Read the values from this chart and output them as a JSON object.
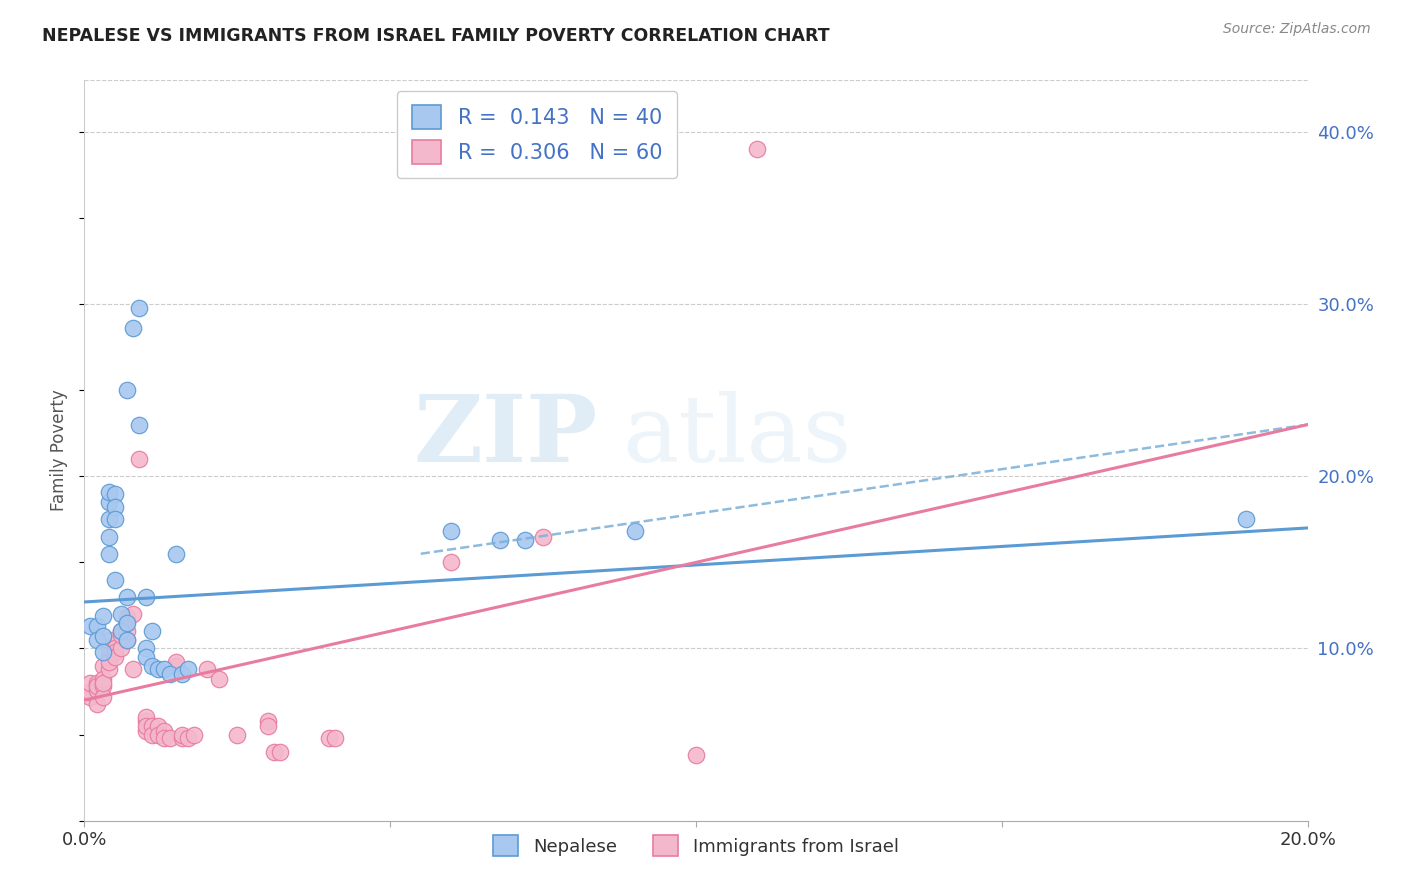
{
  "title": "NEPALESE VS IMMIGRANTS FROM ISRAEL FAMILY POVERTY CORRELATION CHART",
  "source": "Source: ZipAtlas.com",
  "ylabel": "Family Poverty",
  "xlim": [
    0.0,
    0.2
  ],
  "ylim": [
    0.0,
    0.43
  ],
  "yticks": [
    0.1,
    0.2,
    0.3,
    0.4
  ],
  "ytick_labels": [
    "10.0%",
    "20.0%",
    "30.0%",
    "40.0%"
  ],
  "xticks": [
    0.0,
    0.05,
    0.1,
    0.15,
    0.2
  ],
  "xtick_labels": [
    "0.0%",
    "",
    "",
    "",
    "20.0%"
  ],
  "nepalese_color": "#a8c8f0",
  "israel_color": "#f4b8cc",
  "nepalese_edge_color": "#5b9bd5",
  "israel_edge_color": "#e87ca0",
  "trendline_nepalese_color": "#5b9bd5",
  "trendline_israel_color": "#e87ca0",
  "dashed_line_color": "#7ab0d8",
  "background_color": "#ffffff",
  "watermark_zip": "ZIP",
  "watermark_atlas": "atlas",
  "nepalese_points": [
    [
      0.001,
      0.113
    ],
    [
      0.002,
      0.113
    ],
    [
      0.002,
      0.105
    ],
    [
      0.003,
      0.107
    ],
    [
      0.003,
      0.098
    ],
    [
      0.003,
      0.119
    ],
    [
      0.004,
      0.185
    ],
    [
      0.004,
      0.191
    ],
    [
      0.004,
      0.175
    ],
    [
      0.004,
      0.165
    ],
    [
      0.004,
      0.155
    ],
    [
      0.005,
      0.19
    ],
    [
      0.005,
      0.182
    ],
    [
      0.005,
      0.14
    ],
    [
      0.005,
      0.175
    ],
    [
      0.006,
      0.12
    ],
    [
      0.006,
      0.11
    ],
    [
      0.007,
      0.105
    ],
    [
      0.007,
      0.115
    ],
    [
      0.007,
      0.13
    ],
    [
      0.007,
      0.25
    ],
    [
      0.008,
      0.286
    ],
    [
      0.009,
      0.23
    ],
    [
      0.009,
      0.298
    ],
    [
      0.01,
      0.13
    ],
    [
      0.01,
      0.1
    ],
    [
      0.01,
      0.095
    ],
    [
      0.011,
      0.11
    ],
    [
      0.011,
      0.09
    ],
    [
      0.012,
      0.088
    ],
    [
      0.013,
      0.088
    ],
    [
      0.014,
      0.085
    ],
    [
      0.015,
      0.155
    ],
    [
      0.016,
      0.085
    ],
    [
      0.017,
      0.088
    ],
    [
      0.06,
      0.168
    ],
    [
      0.068,
      0.163
    ],
    [
      0.072,
      0.163
    ],
    [
      0.09,
      0.168
    ],
    [
      0.19,
      0.175
    ]
  ],
  "israel_points": [
    [
      0.001,
      0.072
    ],
    [
      0.001,
      0.075
    ],
    [
      0.001,
      0.08
    ],
    [
      0.002,
      0.08
    ],
    [
      0.002,
      0.068
    ],
    [
      0.002,
      0.076
    ],
    [
      0.002,
      0.078
    ],
    [
      0.003,
      0.078
    ],
    [
      0.003,
      0.072
    ],
    [
      0.003,
      0.09
    ],
    [
      0.003,
      0.082
    ],
    [
      0.003,
      0.08
    ],
    [
      0.004,
      0.088
    ],
    [
      0.004,
      0.095
    ],
    [
      0.004,
      0.092
    ],
    [
      0.004,
      0.1
    ],
    [
      0.004,
      0.105
    ],
    [
      0.005,
      0.1
    ],
    [
      0.005,
      0.098
    ],
    [
      0.005,
      0.095
    ],
    [
      0.006,
      0.1
    ],
    [
      0.006,
      0.11
    ],
    [
      0.006,
      0.108
    ],
    [
      0.007,
      0.105
    ],
    [
      0.007,
      0.11
    ],
    [
      0.007,
      0.116
    ],
    [
      0.007,
      0.118
    ],
    [
      0.008,
      0.12
    ],
    [
      0.008,
      0.088
    ],
    [
      0.009,
      0.21
    ],
    [
      0.01,
      0.058
    ],
    [
      0.01,
      0.06
    ],
    [
      0.01,
      0.052
    ],
    [
      0.01,
      0.055
    ],
    [
      0.011,
      0.055
    ],
    [
      0.011,
      0.05
    ],
    [
      0.012,
      0.055
    ],
    [
      0.012,
      0.05
    ],
    [
      0.013,
      0.052
    ],
    [
      0.013,
      0.048
    ],
    [
      0.014,
      0.048
    ],
    [
      0.015,
      0.09
    ],
    [
      0.015,
      0.092
    ],
    [
      0.016,
      0.048
    ],
    [
      0.016,
      0.05
    ],
    [
      0.017,
      0.048
    ],
    [
      0.018,
      0.05
    ],
    [
      0.02,
      0.088
    ],
    [
      0.022,
      0.082
    ],
    [
      0.025,
      0.05
    ],
    [
      0.03,
      0.058
    ],
    [
      0.03,
      0.055
    ],
    [
      0.031,
      0.04
    ],
    [
      0.032,
      0.04
    ],
    [
      0.04,
      0.048
    ],
    [
      0.041,
      0.048
    ],
    [
      0.06,
      0.15
    ],
    [
      0.075,
      0.165
    ],
    [
      0.1,
      0.038
    ],
    [
      0.11,
      0.39
    ]
  ],
  "nep_trend_x0": 0.0,
  "nep_trend_y0": 0.127,
  "nep_trend_x1": 0.2,
  "nep_trend_y1": 0.17,
  "isr_trend_x0": 0.0,
  "isr_trend_y0": 0.07,
  "isr_trend_x1": 0.2,
  "isr_trend_y1": 0.23,
  "dash_trend_x0": 0.055,
  "dash_trend_y0": 0.155,
  "dash_trend_x1": 0.2,
  "dash_trend_y1": 0.23
}
